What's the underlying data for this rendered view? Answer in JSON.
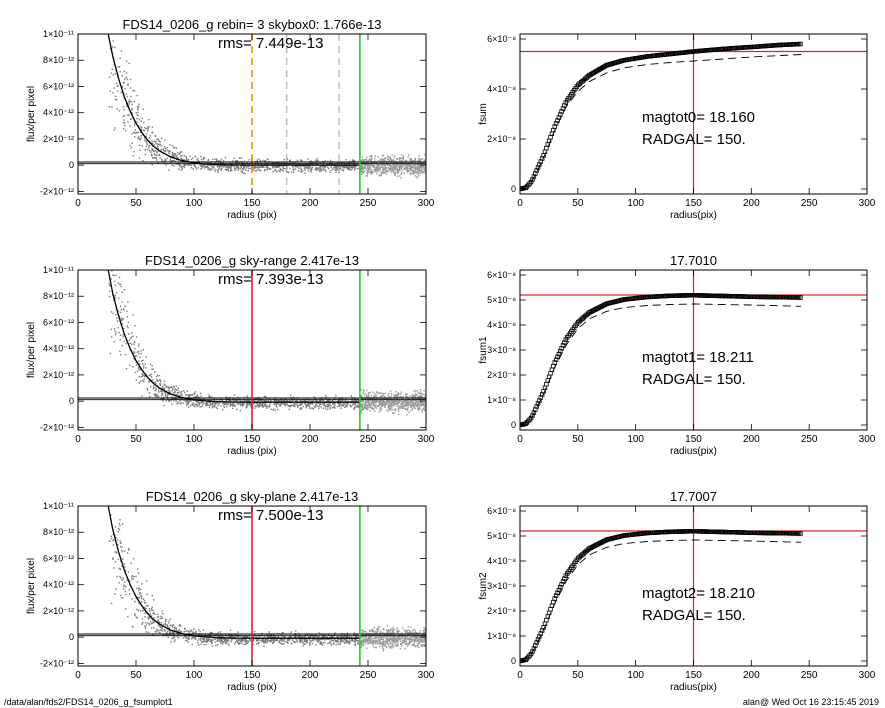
{
  "footer": {
    "left": "/data/alan/fds2/FDS14_0206_g_fsumplot1",
    "right": "alan@  Wed Oct 16 23:15:45 2019"
  },
  "colors": {
    "axis": "#000000",
    "profile": "#000000",
    "scatter": "#7a7a7a",
    "red": "#d62728",
    "green": "#22cc22",
    "orange": "#ff8c00",
    "gray_dash": "#888888"
  },
  "chart_data": [
    {
      "type": "scatter",
      "title": "FDS14_0206_g rebin= 3    skybox0:  1.766e-13",
      "annotation": "rms= 7.449e-13",
      "xlabel": "radius (pix)",
      "ylabel": "flux/per pixel",
      "xlim": [
        0,
        300
      ],
      "ylim": [
        -2.2e-12,
        1e-11
      ],
      "xticks": [
        0,
        50,
        100,
        150,
        200,
        250,
        300
      ],
      "yticks": [
        {
          "v": 1e-11,
          "label": "1×10⁻¹¹"
        },
        {
          "v": 8e-12,
          "label": "8×10⁻¹²"
        },
        {
          "v": 6e-12,
          "label": "6×10⁻¹²"
        },
        {
          "v": 4e-12,
          "label": "4×10⁻¹²"
        },
        {
          "v": 2e-12,
          "label": "2×10⁻¹²"
        },
        {
          "v": 0,
          "label": "0"
        },
        {
          "v": -2e-12,
          "label": "-2×10⁻¹²"
        }
      ],
      "profile": {
        "x": [
          26,
          30,
          35,
          40,
          45,
          50,
          55,
          60,
          65,
          70,
          80,
          90,
          100,
          110,
          120,
          135,
          150,
          170,
          200,
          243
        ],
        "y": [
          1e-11,
          8.3e-12,
          6.6e-12,
          5.2e-12,
          4.1e-12,
          3.2e-12,
          2.5e-12,
          1.9e-12,
          1.45e-12,
          1.1e-12,
          6.2e-13,
          3.4e-13,
          1.8e-13,
          9e-14,
          4e-14,
          1e-14,
          0,
          0,
          0,
          0
        ]
      },
      "hlines": [
        {
          "y": 2.4e-13,
          "color": "black"
        },
        {
          "y": 1.1e-13,
          "color": "black"
        }
      ],
      "vlines": [
        {
          "x": 150,
          "color": "orange",
          "dash": true
        },
        {
          "x": 180,
          "color": "gray",
          "dash": true
        },
        {
          "x": 225,
          "color": "gray",
          "dash": true
        },
        {
          "x": 243,
          "color": "green",
          "dash": false
        }
      ]
    },
    {
      "type": "line",
      "title": "",
      "annotation": "magtot0=  18.160",
      "annotation2": "RADGAL=    150.",
      "xlabel": "radius(pix)",
      "ylabel": "fsum",
      "xlim": [
        0,
        300
      ],
      "ylim": [
        -2e-09,
        6.2e-08
      ],
      "xticks": [
        0,
        50,
        100,
        150,
        200,
        250,
        300
      ],
      "yticks": [
        {
          "v": 6e-08,
          "label": "6×10⁻⁸"
        },
        {
          "v": 4e-08,
          "label": "4×10⁻⁸"
        },
        {
          "v": 2e-08,
          "label": "2×10⁻⁸"
        },
        {
          "v": 0,
          "label": "0"
        }
      ],
      "series": [
        {
          "x": [
            0,
            5,
            10,
            20,
            30,
            40,
            50,
            60,
            75,
            90,
            110,
            130,
            150,
            175,
            200,
            225,
            243
          ],
          "y": [
            0,
            5e-10,
            3e-09,
            1.3e-08,
            2.5e-08,
            3.5e-08,
            4.15e-08,
            4.55e-08,
            4.95e-08,
            5.15e-08,
            5.3e-08,
            5.4e-08,
            5.5e-08,
            5.6e-08,
            5.68e-08,
            5.76e-08,
            5.8e-08
          ],
          "style": "markers"
        },
        {
          "x": [
            0,
            10,
            20,
            30,
            40,
            50,
            60,
            75,
            90,
            110,
            130,
            150,
            175,
            200,
            225,
            243
          ],
          "y": [
            0,
            2.8e-09,
            1.2e-08,
            2.35e-08,
            3.3e-08,
            3.9e-08,
            4.3e-08,
            4.65e-08,
            4.85e-08,
            4.98e-08,
            5.06e-08,
            5.12e-08,
            5.2e-08,
            5.28e-08,
            5.34e-08,
            5.38e-08
          ],
          "style": "dashed"
        }
      ],
      "hline": {
        "y": 5.5e-08,
        "color": "red"
      },
      "vline": {
        "x": 150,
        "color": "red"
      }
    },
    {
      "type": "scatter",
      "title": "FDS14_0206_g sky-range  2.417e-13",
      "annotation": "rms= 7.393e-13",
      "xlabel": "radius (pix)",
      "ylabel": "flux/per pixel",
      "xlim": [
        0,
        300
      ],
      "ylim": [
        -2.2e-12,
        1e-11
      ],
      "xticks": [
        0,
        50,
        100,
        150,
        200,
        250,
        300
      ],
      "yticks": [
        {
          "v": 1e-11,
          "label": "1×10⁻¹¹"
        },
        {
          "v": 8e-12,
          "label": "8×10⁻¹²"
        },
        {
          "v": 6e-12,
          "label": "6×10⁻¹²"
        },
        {
          "v": 4e-12,
          "label": "4×10⁻¹²"
        },
        {
          "v": 2e-12,
          "label": "2×10⁻¹²"
        },
        {
          "v": 0,
          "label": "0"
        },
        {
          "v": -2e-12,
          "label": "-2×10⁻¹²"
        }
      ],
      "profile": {
        "x": [
          26,
          30,
          35,
          40,
          45,
          50,
          55,
          60,
          65,
          70,
          80,
          90,
          100,
          110,
          120,
          135,
          150,
          170,
          200,
          243
        ],
        "y": [
          1e-11,
          8.2e-12,
          6.5e-12,
          5.1e-12,
          4e-12,
          3.1e-12,
          2.4e-12,
          1.8e-12,
          1.35e-12,
          1e-12,
          5.4e-13,
          2.6e-13,
          1e-13,
          2e-14,
          -4e-14,
          -7e-14,
          -8e-14,
          -8e-14,
          -8e-14,
          -8e-14
        ]
      },
      "hlines": [
        {
          "y": 2.4e-13,
          "color": "black"
        },
        {
          "y": 1.1e-13,
          "color": "black"
        }
      ],
      "vlines": [
        {
          "x": 150,
          "color": "red",
          "dash": false
        },
        {
          "x": 243,
          "color": "green",
          "dash": false
        }
      ]
    },
    {
      "type": "line",
      "title": "17.7010",
      "annotation": "magtot1=  18.211",
      "annotation2": "RADGAL=    150.",
      "xlabel": "radius(pix)",
      "ylabel": "fsum1",
      "xlim": [
        0,
        300
      ],
      "ylim": [
        -2e-09,
        6.2e-08
      ],
      "xticks": [
        0,
        50,
        100,
        150,
        200,
        250,
        300
      ],
      "yticks": [
        {
          "v": 6e-08,
          "label": "6×10⁻⁸"
        },
        {
          "v": 5e-08,
          "label": "5×10⁻⁸"
        },
        {
          "v": 4e-08,
          "label": "4×10⁻⁸"
        },
        {
          "v": 3e-08,
          "label": "3×10⁻⁸"
        },
        {
          "v": 2e-08,
          "label": "2×10⁻⁸"
        },
        {
          "v": 1e-08,
          "label": "1×10⁻⁸"
        },
        {
          "v": 0,
          "label": "0"
        }
      ],
      "series": [
        {
          "x": [
            0,
            5,
            10,
            20,
            30,
            40,
            50,
            60,
            75,
            90,
            110,
            130,
            150,
            175,
            200,
            225,
            243
          ],
          "y": [
            0,
            5e-10,
            3e-09,
            1.3e-08,
            2.5e-08,
            3.45e-08,
            4.1e-08,
            4.5e-08,
            4.85e-08,
            5.02e-08,
            5.12e-08,
            5.17e-08,
            5.19e-08,
            5.16e-08,
            5.13e-08,
            5.11e-08,
            5.1e-08
          ],
          "style": "markers"
        },
        {
          "x": [
            0,
            10,
            20,
            30,
            40,
            50,
            60,
            75,
            90,
            110,
            130,
            150,
            175,
            200,
            225,
            243
          ],
          "y": [
            0,
            2.8e-09,
            1.2e-08,
            2.3e-08,
            3.2e-08,
            3.85e-08,
            4.25e-08,
            4.55e-08,
            4.7e-08,
            4.78e-08,
            4.82e-08,
            4.84e-08,
            4.82e-08,
            4.8e-08,
            4.77e-08,
            4.75e-08
          ],
          "style": "dashed"
        }
      ],
      "hline": {
        "y": 5.2e-08,
        "color": "red"
      },
      "vline": {
        "x": 150,
        "color": "red"
      }
    },
    {
      "type": "scatter",
      "title": "FDS14_0206_g sky-plane  2.417e-13",
      "annotation": "rms= 7.500e-13",
      "xlabel": "radius (pix)",
      "ylabel": "flux/per pixel",
      "xlim": [
        0,
        300
      ],
      "ylim": [
        -2.2e-12,
        1e-11
      ],
      "xticks": [
        0,
        50,
        100,
        150,
        200,
        250,
        300
      ],
      "yticks": [
        {
          "v": 1e-11,
          "label": "1×10⁻¹¹"
        },
        {
          "v": 8e-12,
          "label": "8×10⁻¹²"
        },
        {
          "v": 6e-12,
          "label": "6×10⁻¹²"
        },
        {
          "v": 4e-12,
          "label": "4×10⁻¹²"
        },
        {
          "v": 2e-12,
          "label": "2×10⁻¹²"
        },
        {
          "v": 0,
          "label": "0"
        },
        {
          "v": -2e-12,
          "label": "-2×10⁻¹²"
        }
      ],
      "profile": {
        "x": [
          26,
          30,
          35,
          40,
          45,
          50,
          55,
          60,
          65,
          70,
          80,
          90,
          100,
          110,
          120,
          135,
          150,
          170,
          200,
          243
        ],
        "y": [
          1e-11,
          8.2e-12,
          6.5e-12,
          5.1e-12,
          4e-12,
          3.1e-12,
          2.4e-12,
          1.8e-12,
          1.35e-12,
          1e-12,
          5.4e-13,
          2.6e-13,
          1e-13,
          2e-14,
          -4e-14,
          -7e-14,
          -8e-14,
          -8e-14,
          -8e-14,
          -8e-14
        ]
      },
      "hlines": [
        {
          "y": 2.4e-13,
          "color": "black"
        },
        {
          "y": 1.1e-13,
          "color": "black"
        }
      ],
      "vlines": [
        {
          "x": 150,
          "color": "red",
          "dash": false
        },
        {
          "x": 243,
          "color": "green",
          "dash": false
        }
      ]
    },
    {
      "type": "line",
      "title": "17.7007",
      "annotation": "magtot2=  18.210",
      "annotation2": "RADGAL=    150.",
      "xlabel": "radius(pix)",
      "ylabel": "fsum2",
      "xlim": [
        0,
        300
      ],
      "ylim": [
        -2e-09,
        6.2e-08
      ],
      "xticks": [
        0,
        50,
        100,
        150,
        200,
        250,
        300
      ],
      "yticks": [
        {
          "v": 6e-08,
          "label": "6×10⁻⁸"
        },
        {
          "v": 5e-08,
          "label": "5×10⁻⁸"
        },
        {
          "v": 4e-08,
          "label": "4×10⁻⁸"
        },
        {
          "v": 3e-08,
          "label": "3×10⁻⁸"
        },
        {
          "v": 2e-08,
          "label": "2×10⁻⁸"
        },
        {
          "v": 1e-08,
          "label": "1×10⁻⁸"
        },
        {
          "v": 0,
          "label": "0"
        }
      ],
      "series": [
        {
          "x": [
            0,
            5,
            10,
            20,
            30,
            40,
            50,
            60,
            75,
            90,
            110,
            130,
            150,
            175,
            200,
            225,
            243
          ],
          "y": [
            0,
            5e-10,
            3e-09,
            1.3e-08,
            2.5e-08,
            3.45e-08,
            4.1e-08,
            4.5e-08,
            4.85e-08,
            5.02e-08,
            5.12e-08,
            5.17e-08,
            5.19e-08,
            5.16e-08,
            5.13e-08,
            5.11e-08,
            5.1e-08
          ],
          "style": "markers"
        },
        {
          "x": [
            0,
            10,
            20,
            30,
            40,
            50,
            60,
            75,
            90,
            110,
            130,
            150,
            175,
            200,
            225,
            243
          ],
          "y": [
            0,
            2.8e-09,
            1.2e-08,
            2.3e-08,
            3.2e-08,
            3.85e-08,
            4.25e-08,
            4.55e-08,
            4.7e-08,
            4.78e-08,
            4.82e-08,
            4.84e-08,
            4.82e-08,
            4.8e-08,
            4.77e-08,
            4.75e-08
          ],
          "style": "dashed"
        }
      ],
      "hline": {
        "y": 5.2e-08,
        "color": "red"
      },
      "vline": {
        "x": 150,
        "color": "red"
      }
    }
  ]
}
